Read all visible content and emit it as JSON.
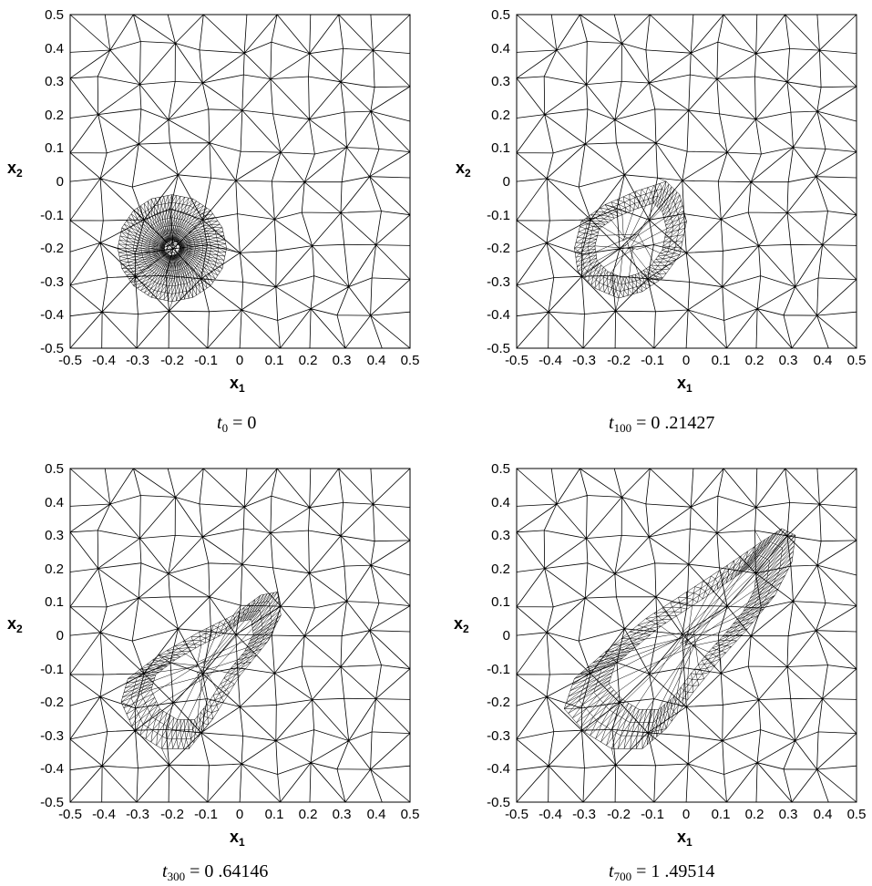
{
  "panels": [
    {
      "id": "p1",
      "x_tick_labels": [
        "-0.5",
        "-0.4",
        "-0.3",
        "-0.2",
        "-0.1",
        "0",
        "0.1",
        "0.2",
        "0.3",
        "0.4",
        "0.5"
      ],
      "y_tick_labels": [
        "0.5",
        "0.4",
        "0.3",
        "0.2",
        "0.1",
        "0",
        "-0.1",
        "-0.2",
        "-0.3",
        "-0.4",
        "-0.5"
      ],
      "xlabel": "x",
      "xlabel_sub": "1",
      "ylabel": "x",
      "ylabel_sub": "2",
      "caption_t": "t",
      "caption_sub": "0",
      "caption_value": " = 0"
    },
    {
      "id": "p2",
      "x_tick_labels": [
        "-0.5",
        "-0.4",
        "-0.3",
        "-0.2",
        "-0.1",
        "0",
        "0.1",
        "0.2",
        "0.3",
        "0.4",
        "0.5"
      ],
      "y_tick_labels": [
        "0.5",
        "0.4",
        "0.3",
        "0.2",
        "0.1",
        "0",
        "-0.1",
        "-0.2",
        "-0.3",
        "-0.4",
        "-0.5"
      ],
      "xlabel": "x",
      "xlabel_sub": "1",
      "ylabel": "x",
      "ylabel_sub": "2",
      "caption_t": "t",
      "caption_sub": "100",
      "caption_value": " = 0 .21427"
    },
    {
      "id": "p3",
      "x_tick_labels": [
        "-0.5",
        "-0.4",
        "-0.3",
        "-0.2",
        "-0.1",
        "0",
        "0.1",
        "0.2",
        "0.3",
        "0.4",
        "0.5"
      ],
      "y_tick_labels": [
        "0.5",
        "0.4",
        "0.3",
        "0.2",
        "0.1",
        "0",
        "-0.1",
        "-0.2",
        "-0.3",
        "-0.4",
        "-0.5"
      ],
      "xlabel": "x",
      "xlabel_sub": "1",
      "ylabel": "x",
      "ylabel_sub": "2",
      "caption_t": "t",
      "caption_sub": "300",
      "caption_value": " = 0 .64146"
    },
    {
      "id": "p4",
      "x_tick_labels": [
        "-0.5",
        "-0.4",
        "-0.3",
        "-0.2",
        "-0.1",
        "0",
        "0.1",
        "0.2",
        "0.3",
        "0.4",
        "0.5"
      ],
      "y_tick_labels": [
        "0.5",
        "0.4",
        "0.3",
        "0.2",
        "0.1",
        "0",
        "-0.1",
        "-0.2",
        "-0.3",
        "-0.4",
        "-0.5"
      ],
      "xlabel": "x",
      "xlabel_sub": "1",
      "ylabel": "x",
      "ylabel_sub": "2",
      "caption_t": "t",
      "caption_sub": "700",
      "caption_value": " = 1 .49514"
    }
  ]
}
